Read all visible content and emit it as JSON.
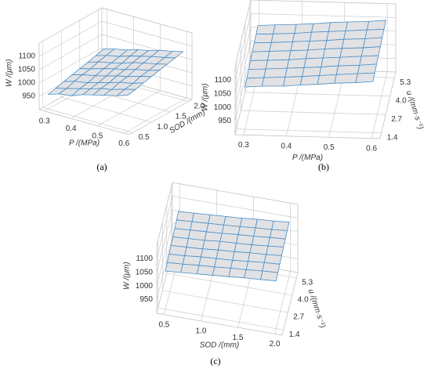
{
  "chart_data": [
    {
      "type": "surface",
      "caption": "(a)",
      "x_label": "P /(MPa)",
      "y_label": "SOD /(mm)",
      "z_label": "W /(μm)",
      "color": "#e2e2e4",
      "edgecolor": "#4a8fc8",
      "x": [
        0.3,
        0.34,
        0.39,
        0.43,
        0.47,
        0.51,
        0.56,
        0.6
      ],
      "y": [
        0.5,
        0.71,
        0.93,
        1.14,
        1.36,
        1.57,
        1.79,
        2.0
      ],
      "z": [
        [
          955,
          968,
          975,
          990,
          1000,
          1010,
          1022,
          1035
        ],
        [
          962,
          972,
          985,
          995,
          1008,
          1015,
          1030,
          1040
        ],
        [
          970,
          982,
          990,
          1002,
          1012,
          1025,
          1035,
          1048
        ],
        [
          978,
          990,
          1000,
          1010,
          1022,
          1030,
          1045,
          1055
        ],
        [
          985,
          995,
          1010,
          1020,
          1028,
          1040,
          1050,
          1062
        ],
        [
          992,
          1005,
          1015,
          1025,
          1038,
          1048,
          1058,
          1068
        ],
        [
          1000,
          1012,
          1022,
          1035,
          1045,
          1055,
          1065,
          1075
        ],
        [
          1008,
          1020,
          1030,
          1042,
          1050,
          1062,
          1072,
          1082
        ]
      ],
      "xlim": [
        0.28,
        0.62
      ],
      "ylim": [
        0.4,
        2.1
      ],
      "zlim": [
        900,
        1150
      ],
      "xticks": [
        0.3,
        0.4,
        0.5,
        0.6
      ],
      "yticks": [
        0.5,
        {
          "value": 1,
          "label": "1.0"
        },
        1.5,
        {
          "value": 2,
          "label": "2.0"
        }
      ],
      "zticks": [
        950,
        1000,
        1050,
        1100
      ]
    },
    {
      "type": "surface",
      "caption": "(b)",
      "x_label": "P /(MPa)",
      "y_label": "u /(mm·s⁻¹)",
      "z_label": "W /(μm)",
      "color": "#e2e2e4",
      "edgecolor": "#4a8fc8",
      "x": [
        0.3,
        0.34,
        0.39,
        0.43,
        0.47,
        0.51,
        0.56,
        0.6
      ],
      "y": [
        1.4,
        1.96,
        2.51,
        3.07,
        3.63,
        4.19,
        4.74,
        5.3
      ],
      "z": [
        [
          1055,
          1060,
          1062,
          1068,
          1072,
          1078,
          1082,
          1088
        ],
        [
          1058,
          1062,
          1066,
          1070,
          1075,
          1080,
          1086,
          1090
        ],
        [
          1062,
          1065,
          1070,
          1074,
          1078,
          1084,
          1088,
          1094
        ],
        [
          1065,
          1068,
          1072,
          1078,
          1082,
          1086,
          1092,
          1096
        ],
        [
          1068,
          1072,
          1076,
          1080,
          1086,
          1090,
          1094,
          1100
        ],
        [
          1072,
          1075,
          1080,
          1084,
          1088,
          1094,
          1098,
          1104
        ],
        [
          1075,
          1078,
          1082,
          1088,
          1092,
          1096,
          1102,
          1106
        ],
        [
          1078,
          1082,
          1086,
          1090,
          1096,
          1100,
          1104,
          1110
        ]
      ],
      "xlim": [
        0.28,
        0.62
      ],
      "ylim": [
        1.0,
        5.7
      ],
      "zlim": [
        900,
        1150
      ],
      "xticks": [
        0.3,
        0.4,
        0.5,
        0.6
      ],
      "yticks": [
        1.4,
        2.7,
        {
          "value": 4,
          "label": "4.0"
        },
        5.3
      ],
      "zticks": [
        950,
        1000,
        1050,
        1100
      ]
    },
    {
      "type": "surface",
      "caption": "(c)",
      "x_label": "SOD /(mm)",
      "y_label": "u /(mm·s⁻¹)",
      "z_label": "W /(μm)",
      "color": "#e2e2e4",
      "edgecolor": "#4a8fc8",
      "x": [
        0.5,
        0.71,
        0.93,
        1.14,
        1.36,
        1.57,
        1.79,
        2.0
      ],
      "y": [
        1.4,
        1.96,
        2.51,
        3.07,
        3.63,
        4.19,
        4.74,
        5.3
      ],
      "z": [
        [
          1040,
          1045,
          1050,
          1055,
          1060,
          1066,
          1070,
          1075
        ],
        [
          1044,
          1048,
          1054,
          1058,
          1064,
          1068,
          1074,
          1078
        ],
        [
          1048,
          1052,
          1058,
          1062,
          1066,
          1072,
          1078,
          1082
        ],
        [
          1052,
          1056,
          1060,
          1066,
          1070,
          1076,
          1080,
          1086
        ],
        [
          1056,
          1060,
          1064,
          1070,
          1074,
          1078,
          1084,
          1090
        ],
        [
          1060,
          1064,
          1068,
          1072,
          1078,
          1082,
          1088,
          1092
        ],
        [
          1064,
          1068,
          1072,
          1076,
          1080,
          1086,
          1090,
          1096
        ],
        [
          1068,
          1072,
          1076,
          1080,
          1084,
          1090,
          1094,
          1100
        ]
      ],
      "xlim": [
        0.4,
        2.1
      ],
      "ylim": [
        1.0,
        5.7
      ],
      "zlim": [
        900,
        1150
      ],
      "xticks": [
        0.5,
        {
          "value": 1,
          "label": "1.0"
        },
        1.5,
        {
          "value": 2,
          "label": "2.0"
        }
      ],
      "yticks": [
        1.4,
        2.7,
        {
          "value": 4,
          "label": "4.0"
        },
        5.3
      ],
      "zticks": [
        950,
        1000,
        1050,
        1100
      ]
    }
  ]
}
